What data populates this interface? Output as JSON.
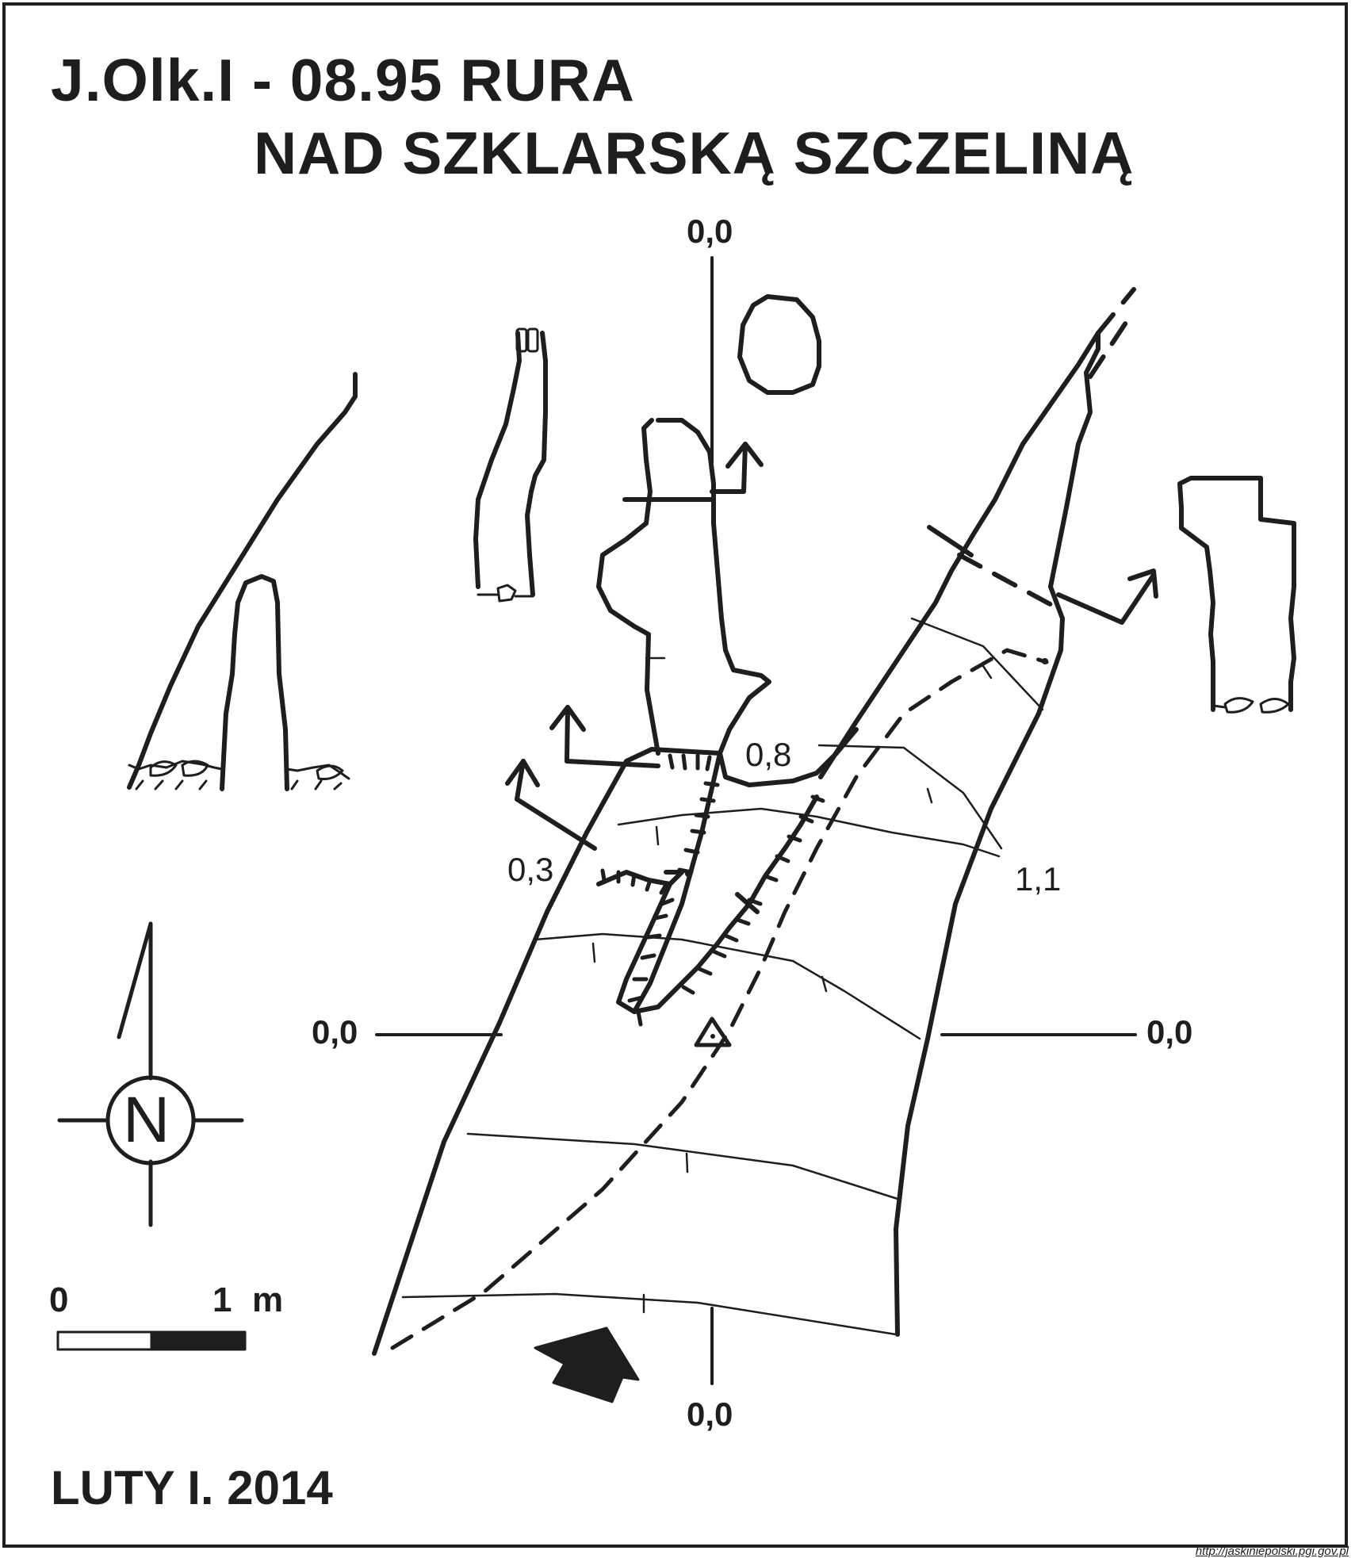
{
  "title": {
    "line1": "J.Olk.I - 08.95  RURA",
    "line2": "NAD SZKLARSKĄ SZCZELINĄ"
  },
  "footer": {
    "author_date": "LUTY I. 2014"
  },
  "credit": "http://jaskiniepolski.pgi.gov.pl",
  "labels": {
    "top": "0,0",
    "left": "0,0",
    "right": "0,0",
    "bottom": "0,0",
    "height_08": "0,8",
    "height_03": "0,3",
    "height_11": "1,1"
  },
  "compass": {
    "letter": "N"
  },
  "scale_bar": {
    "zero": "0",
    "one": "1",
    "unit": "m"
  },
  "colors": {
    "ink": "#1e1e1e",
    "paper": "#ffffff"
  }
}
